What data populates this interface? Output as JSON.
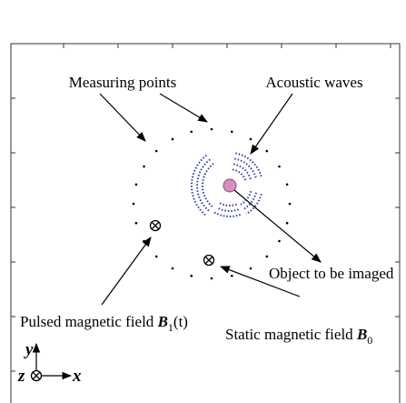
{
  "labels": {
    "measuring_points": "Measuring points",
    "acoustic_waves": "Acoustic waves",
    "object": "Object to be imaged",
    "pulsed_field": {
      "text": "Pulsed magnetic field",
      "symbol": "B",
      "subscript": "1",
      "suffix": "(t)"
    },
    "static_field": {
      "text": "Static magnetic field",
      "symbol": "B",
      "subscript": "0"
    },
    "axes": {
      "x": "x",
      "y": "y",
      "z": "z"
    }
  }
}
